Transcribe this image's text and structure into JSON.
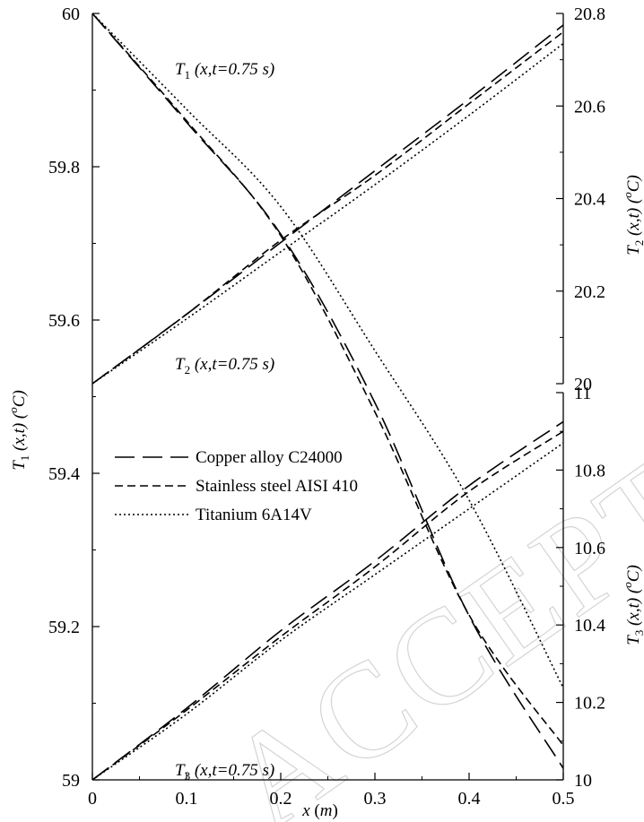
{
  "chart_data": {
    "type": "line",
    "x": [
      0,
      0.1,
      0.2,
      0.3,
      0.4,
      0.5
    ],
    "xlim": [
      0,
      0.5
    ],
    "xlabel_var": "x",
    "xlabel_unit": "m",
    "x_ticks": [
      "0",
      "0.1",
      "0.2",
      "0.3",
      "0.4",
      "0.5"
    ],
    "left_axis": {
      "ylim": [
        59,
        60
      ],
      "ticks": [
        "59",
        "59.2",
        "59.4",
        "59.6",
        "59.8",
        "60"
      ],
      "label_var": "T",
      "label_sub": "1",
      "label_rest": " (x,t) (",
      "label_unit_sup": "o",
      "label_unit": "C)"
    },
    "right_axis_top": {
      "ylim": [
        20,
        20.8
      ],
      "ticks": [
        "20",
        "20.2",
        "20.4",
        "20.6",
        "20.8"
      ],
      "label_var": "T",
      "label_sub": "2",
      "label_rest": " (x,t) (",
      "label_unit_sup": "o",
      "label_unit": "C)"
    },
    "right_axis_bottom": {
      "ylim": [
        10,
        11
      ],
      "ticks": [
        "10",
        "10.2",
        "10.4",
        "10.6",
        "10.8",
        "11"
      ],
      "label_var": "T",
      "label_sub": "3",
      "label_rest": " (x,t) (",
      "label_unit_sup": "o",
      "label_unit": "C)"
    },
    "annotations": [
      {
        "var": "T",
        "sub": "1",
        "rest": " (x,t=0.75 s)"
      },
      {
        "var": "T",
        "sub": "2",
        "rest": " (x,t=0.75 s)"
      },
      {
        "var": "T",
        "sub": "3",
        "rest": " (x,t=0.75 s)"
      }
    ],
    "legend_position": "center-left",
    "series": [
      {
        "name": "Copper alloy C24000",
        "style": "long-dash",
        "color": "#000000",
        "T1": [
          60.0,
          59.858,
          59.712,
          59.492,
          59.214,
          59.015
        ],
        "T2": [
          20.0,
          20.15,
          20.305,
          20.46,
          20.615,
          20.775
        ],
        "T3": [
          10.0,
          10.185,
          10.385,
          10.565,
          10.76,
          10.925
        ]
      },
      {
        "name": "Stainless steel AISI 410",
        "style": "short-dash",
        "color": "#000000",
        "T1": [
          60.0,
          59.86,
          59.71,
          59.48,
          59.215,
          59.045
        ],
        "T2": [
          20.0,
          20.15,
          20.31,
          20.45,
          20.605,
          20.76
        ],
        "T3": [
          10.0,
          10.18,
          10.37,
          10.55,
          10.745,
          10.9
        ]
      },
      {
        "name": "Titanium 6A14V",
        "style": "dotted",
        "color": "#000000",
        "T1": [
          60.0,
          59.875,
          59.748,
          59.56,
          59.365,
          59.12
        ],
        "T2": [
          20.0,
          20.14,
          20.285,
          20.43,
          20.58,
          20.735
        ],
        "T3": [
          10.0,
          10.17,
          10.36,
          10.53,
          10.7,
          10.87
        ]
      }
    ]
  },
  "watermark": "ACCEPTED MANUSCRIPT"
}
